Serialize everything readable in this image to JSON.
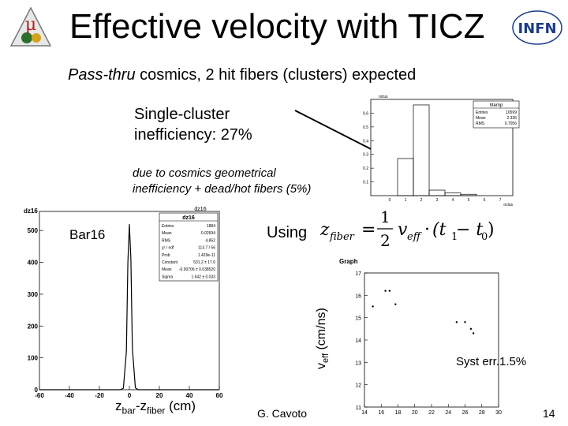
{
  "slide": {
    "title": "Effective velocity with TICZ",
    "subtitle_italic": "Pass-thru",
    "subtitle_rest": " cosmics,  2 hit fibers (clusters) expected",
    "ineff_line1": "Single-cluster",
    "ineff_line2": "inefficiency: 27%",
    "note_line1": " due to cosmics  geometrical",
    "note_line2": "inefficiency + dead/hot fibers (5%)",
    "bar_label": "Bar16",
    "using_label": "Using",
    "formula": {
      "lhs_z": "z",
      "lhs_sub": "fiber",
      "eq": "=",
      "half_num": "1",
      "half_den": "2",
      "v": "v",
      "v_sub": "eff",
      "dot": "·",
      "paren": "(t",
      "t1_sub": "1",
      "minus": " − t",
      "t0_sub": "0",
      "close": ")"
    },
    "veff_label": {
      "main": "v",
      "sub": "eff",
      "unit": " (cm/ns)"
    },
    "zaxis": {
      "z1": "z",
      "s1": "bar",
      "dash": "-z",
      "s2": "fiber",
      "unit": " (cm)"
    },
    "syst_label": "Syst err.1.5%",
    "author": "G. Cavoto",
    "page_number": "14",
    "logo_left_text": "μ",
    "logo_right_text": "INFN"
  },
  "chart_data": [
    {
      "type": "bar",
      "title": "htemp",
      "xlabel": "nclus",
      "plot_label": "nclus",
      "ylim": [
        0,
        0.7
      ],
      "yticks": [
        "0.1",
        "0.2",
        "0.3",
        "0.4",
        "0.5",
        "0.6"
      ],
      "categories": [
        "0",
        "1",
        "2",
        "3",
        "4",
        "5",
        "6",
        "7"
      ],
      "values": [
        0.0,
        0.27,
        0.66,
        0.04,
        0.02,
        0.01,
        0.0,
        0.0
      ],
      "stats": [
        {
          "label": "Entries",
          "value": "16599"
        },
        {
          "label": "Mean",
          "value": "2.336"
        },
        {
          "label": "RMS",
          "value": "0.7056"
        }
      ]
    },
    {
      "type": "line",
      "title": "dz16",
      "hist_label": "dz16",
      "xlabel_ticks": [
        "-60",
        "-40",
        "-20",
        "0",
        "20",
        "40",
        "60"
      ],
      "yticks": [
        "0",
        "100",
        "200",
        "300",
        "400",
        "500"
      ],
      "xlim": [
        -60,
        60
      ],
      "ylim": [
        0,
        560
      ],
      "x": [
        -60,
        -40,
        -20,
        -6,
        -4,
        -2,
        -1,
        0,
        1,
        2,
        4,
        6,
        20,
        40,
        60
      ],
      "values": [
        0,
        0,
        0,
        0,
        5,
        120,
        400,
        520,
        410,
        130,
        6,
        0,
        0,
        0,
        0
      ],
      "stats": [
        {
          "label": "Entries",
          "value": "1884"
        },
        {
          "label": "Mean",
          "value": "0.02694"
        },
        {
          "label": "RMS",
          "value": "4.852"
        },
        {
          "label": "χ² / ndf",
          "value": "113.7 / 56"
        },
        {
          "label": "Prob",
          "value": "1.429e-11"
        },
        {
          "label": "Constant",
          "value": "531.2 ± 17.6"
        },
        {
          "label": "Mean",
          "value": "-0.00706 ± 0.038520"
        },
        {
          "label": "Sigma",
          "value": "1.642 ± 0.033"
        }
      ]
    },
    {
      "type": "scatter",
      "title": "Graph",
      "xlim": [
        14,
        30
      ],
      "ylim": [
        11,
        17
      ],
      "xticks": [
        "14",
        "16",
        "18",
        "20",
        "22",
        "24",
        "26",
        "28",
        "30"
      ],
      "yticks": [
        "11",
        "12",
        "13",
        "14",
        "15",
        "16",
        "17"
      ],
      "x": [
        15,
        16.5,
        17,
        17.7,
        25,
        26,
        26.7,
        27
      ],
      "values": [
        15.5,
        16.2,
        16.2,
        15.6,
        14.8,
        14.8,
        14.5,
        14.3
      ]
    }
  ]
}
